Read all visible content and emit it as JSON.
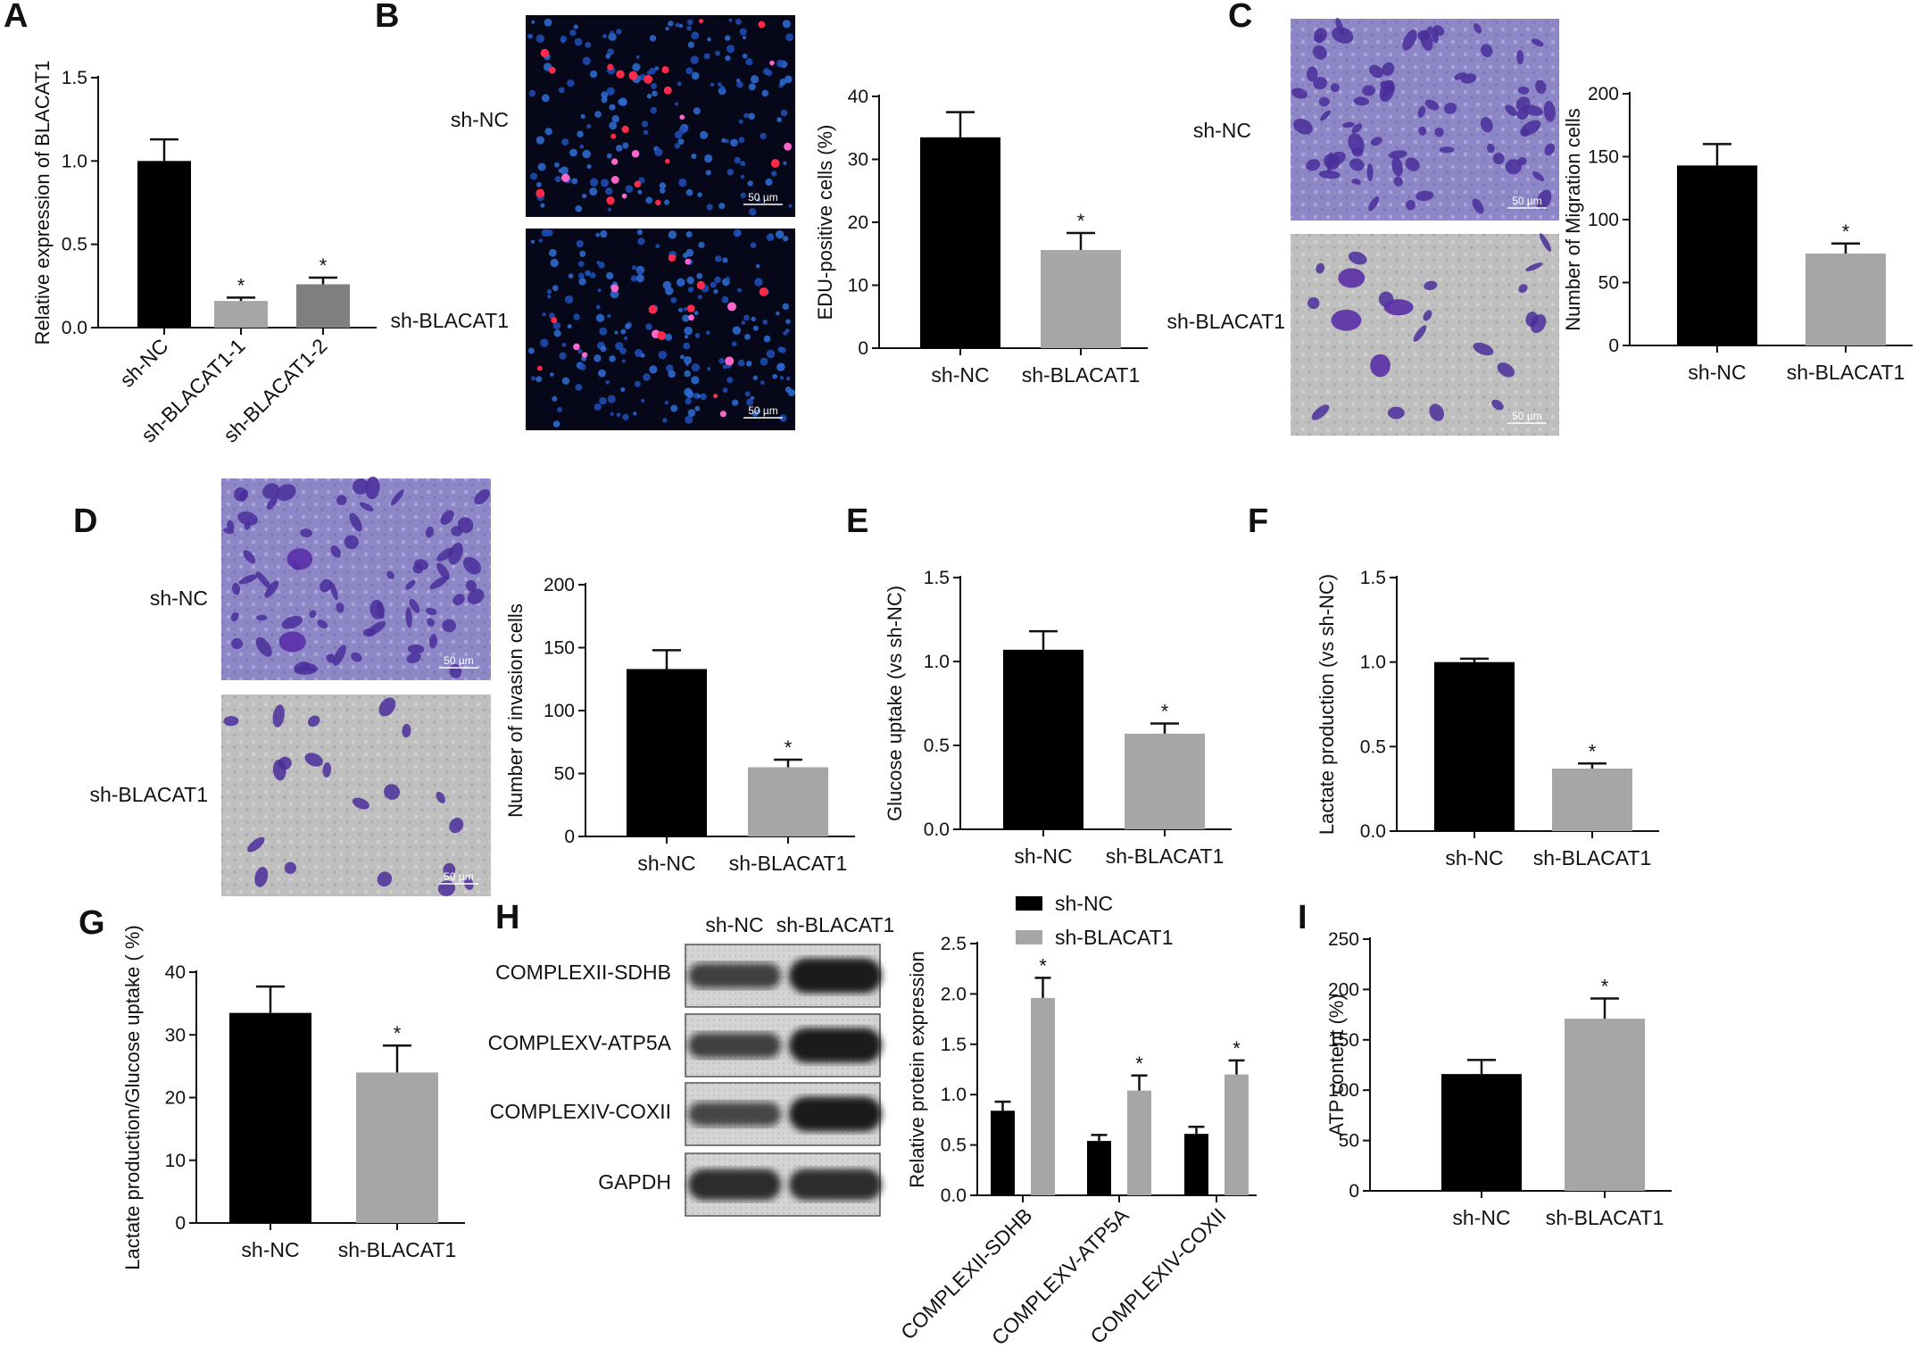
{
  "panel_labels": {
    "A": "A",
    "B": "B",
    "C": "C",
    "D": "D",
    "E": "E",
    "F": "F",
    "G": "G",
    "H": "H",
    "I": "I"
  },
  "sig_mark": "*",
  "colors": {
    "sh_nc": "#000000",
    "sh_blacat1": "#a6a6a6",
    "sh_blacat1_2": "#7f7f7f",
    "fluor_bg": "#06081a",
    "stain_bg_dark": "#8d87c8",
    "stain_bg_light": "#bfbfbf",
    "cell": "#4a2e9a"
  },
  "micrographs": {
    "B": {
      "top_label": "sh-NC",
      "bottom_label": "sh-BLACAT1",
      "scale_bar": "50 µm"
    },
    "C": {
      "top_label": "sh-NC",
      "bottom_label": "sh-BLACAT1",
      "scale_bar": "50 µm"
    },
    "D": {
      "top_label": "sh-NC",
      "bottom_label": "sh-BLACAT1",
      "scale_bar": "50 µm"
    }
  },
  "western_blot": {
    "lane_labels": [
      "sh-NC",
      "sh-BLACAT1"
    ],
    "rows": [
      "COMPLEXII-SDHB",
      "COMPLEXV-ATP5A",
      "COMPLEXIV-COXII",
      "GAPDH"
    ]
  },
  "chart_data": [
    {
      "panel": "A",
      "type": "bar",
      "categories": [
        "sh-NC",
        "sh-BLACAT1-1",
        "sh-BLACAT1-2"
      ],
      "values": [
        1.0,
        0.16,
        0.26
      ],
      "errors": [
        0.13,
        0.02,
        0.04
      ],
      "significant": [
        false,
        true,
        true
      ],
      "ylabel": "Relative expression of BLACAT1",
      "ylim": [
        0,
        1.5
      ],
      "yticks": [
        0.0,
        0.5,
        1.0,
        1.5
      ]
    },
    {
      "panel": "B",
      "type": "bar",
      "categories": [
        "sh-NC",
        "sh-BLACAT1"
      ],
      "values": [
        33.5,
        15.6
      ],
      "errors": [
        4.0,
        2.7
      ],
      "significant": [
        false,
        true
      ],
      "ylabel": "EDU-positive cells (%)",
      "ylim": [
        0,
        40
      ],
      "yticks": [
        0,
        10,
        20,
        30,
        40
      ]
    },
    {
      "panel": "C",
      "type": "bar",
      "categories": [
        "sh-NC",
        "sh-BLACAT1"
      ],
      "values": [
        143,
        73
      ],
      "errors": [
        17,
        8
      ],
      "significant": [
        false,
        true
      ],
      "ylabel": "Number of Migration cells",
      "ylim": [
        0,
        200
      ],
      "yticks": [
        0,
        50,
        100,
        150,
        200
      ]
    },
    {
      "panel": "D",
      "type": "bar",
      "categories": [
        "sh-NC",
        "sh-BLACAT1"
      ],
      "values": [
        133,
        55
      ],
      "errors": [
        15,
        6
      ],
      "significant": [
        false,
        true
      ],
      "ylabel": "Number of invasion cells",
      "ylim": [
        0,
        200
      ],
      "yticks": [
        0,
        50,
        100,
        150,
        200
      ]
    },
    {
      "panel": "E",
      "type": "bar",
      "categories": [
        "sh-NC",
        "sh-BLACAT1"
      ],
      "values": [
        1.07,
        0.57
      ],
      "errors": [
        0.11,
        0.06
      ],
      "significant": [
        false,
        true
      ],
      "ylabel": "Glucose uptake (vs sh-NC)",
      "ylim": [
        0,
        1.5
      ],
      "yticks": [
        0.0,
        0.5,
        1.0,
        1.5
      ]
    },
    {
      "panel": "F",
      "type": "bar",
      "categories": [
        "sh-NC",
        "sh-BLACAT1"
      ],
      "values": [
        1.0,
        0.37
      ],
      "errors": [
        0.02,
        0.03
      ],
      "significant": [
        false,
        true
      ],
      "ylabel": "Lactate production (vs sh-NC)",
      "ylim": [
        0,
        1.5
      ],
      "yticks": [
        0.0,
        0.5,
        1.0,
        1.5
      ]
    },
    {
      "panel": "G",
      "type": "bar",
      "categories": [
        "sh-NC",
        "sh-BLACAT1"
      ],
      "values": [
        33.5,
        24
      ],
      "errors": [
        4.2,
        4.3
      ],
      "significant": [
        false,
        true
      ],
      "ylabel": "Lactate production/Glucose uptake ( %)",
      "ylim": [
        0,
        40
      ],
      "yticks": [
        0,
        10,
        20,
        30,
        40
      ]
    },
    {
      "panel": "H",
      "type": "bar",
      "categories": [
        "COMPLEXII-SDHB",
        "COMPLEXV-ATP5A",
        "COMPLEXIV-COXII"
      ],
      "series": [
        {
          "name": "sh-NC",
          "values": [
            0.84,
            0.54,
            0.61
          ],
          "errors": [
            0.09,
            0.06,
            0.07
          ]
        },
        {
          "name": "sh-BLACAT1",
          "values": [
            1.96,
            1.04,
            1.2
          ],
          "errors": [
            0.2,
            0.15,
            0.14
          ],
          "significant": [
            true,
            true,
            true
          ]
        }
      ],
      "ylabel": "Relative protein expression",
      "ylim": [
        0,
        2.5
      ],
      "yticks": [
        0.0,
        0.5,
        1.0,
        1.5,
        2.0,
        2.5
      ],
      "legend": "top"
    },
    {
      "panel": "I",
      "type": "bar",
      "categories": [
        "sh-NC",
        "sh-BLACAT1"
      ],
      "values": [
        116,
        171
      ],
      "errors": [
        14,
        20
      ],
      "significant": [
        false,
        true
      ],
      "ylabel": "ATP content (%)",
      "ylim": [
        0,
        250
      ],
      "yticks": [
        0,
        50,
        100,
        150,
        200,
        250
      ]
    }
  ]
}
